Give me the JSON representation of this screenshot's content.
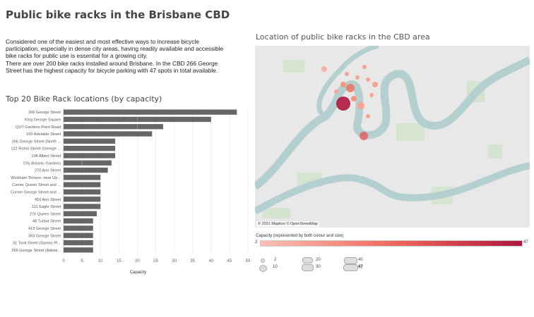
{
  "title": "Public bike racks in the Brisbane CBD",
  "intro": [
    "Considered one of the easiest and most effective ways to increase bicycle participation, especially in dense city areas, having readily available and accessible bike racks for public use is essential for a growing city.",
    "There are over 200 bike racks installed around Brisbane. In the CBD 266 George Street has the highest capacity for bicycle parking with 47 spots in total available."
  ],
  "map": {
    "title": "Location of public bike racks in the CBD area",
    "attribution": "© 2021 Mapbox © OpenStreetMap",
    "legend": {
      "title": "Capacity (represented by both colour and size)",
      "min": "2",
      "max": "47",
      "sizes": [
        "2",
        "10",
        "20",
        "30",
        "40",
        "47"
      ]
    }
  },
  "colors": {
    "bar": "#666666",
    "low": "#fcc0b5",
    "high": "#b0163f"
  },
  "chart_data": {
    "type": "bar",
    "orientation": "horizontal",
    "title": "Top 20 Bike Rack locations (by capacity)",
    "xlabel": "Capacity",
    "xlim": [
      0,
      50
    ],
    "xticks": [
      "0",
      "5",
      "10",
      "15",
      "20",
      "25",
      "30",
      "35",
      "40",
      "45",
      "50"
    ],
    "categories": [
      "266 George Street",
      "King George Square",
      "QUT Gardens Point Road",
      "100 Adelaide Street",
      "266 George Street (North ...",
      "122 Roma Street (George ...",
      "108 Albert Street",
      "City Botanic Gardens",
      "270 Ann Street",
      "Wickham Terrace, near Up...",
      "Corner Queen Street and ...",
      "Corner George Street and ...",
      "410 Ann Street",
      "111 Eagle Street",
      "270 Queen Street",
      "48 Turbot Street",
      "419 George Street",
      "363 George Street",
      "31 Tank Street (Santos Pl...",
      "266 George Street (Adelai..."
    ],
    "values": [
      47,
      40,
      27,
      24,
      14,
      14,
      14,
      13,
      12,
      10,
      10,
      10,
      10,
      10,
      9,
      8,
      8,
      8,
      8,
      8
    ],
    "segment_breaks": [
      null,
      20,
      20,
      null,
      null,
      null,
      null,
      5,
      null,
      null,
      null,
      null,
      null,
      null,
      null,
      null,
      null,
      null,
      null,
      null
    ]
  }
}
